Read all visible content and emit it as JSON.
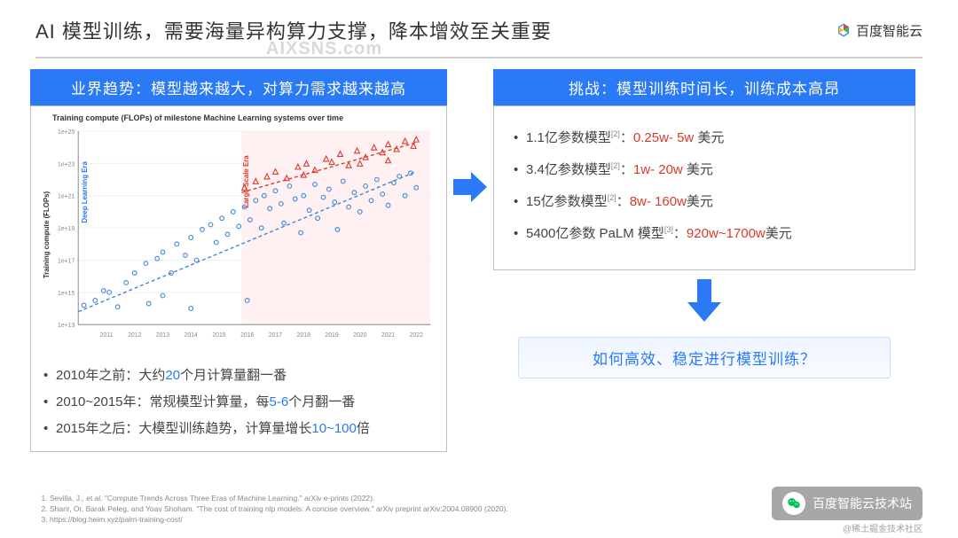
{
  "header": {
    "title": "AI 模型训练，需要海量异构算力支撑，降本增效至关重要",
    "brand": "百度智能云",
    "brand_colors": [
      "#e63b2e",
      "#3cba54",
      "#4285f4",
      "#fbbc05"
    ]
  },
  "watermark": "AIXSNS.com",
  "left_panel": {
    "bar_title": "业界趋势：模型越来越大，对算力需求越来越高",
    "chart": {
      "type": "scatter",
      "title": "Training compute (FLOPs) of milestone Machine Learning systems over time",
      "xlabel_ticks": [
        "2011",
        "2012",
        "2013",
        "2014",
        "2015",
        "2016",
        "2017",
        "2018",
        "2019",
        "2020",
        "2021",
        "2022"
      ],
      "ylabel": "Training compute (FLOPs)",
      "y_scale": "log",
      "ylim_exp": [
        13,
        25
      ],
      "ytick_exp": [
        13,
        15,
        17,
        19,
        21,
        23,
        25
      ],
      "background_color": "#ffffff",
      "grid_color": "#f0f0f0",
      "era_label_left": "Deep Learning Era",
      "era_label_left_color": "#2a7af5",
      "era_label_right": "Large-Scale Era",
      "era_label_right_color": "#d93a2b",
      "era_boundary_x": 2015.8,
      "shade_right_color": "rgba(255,200,200,0.25)",
      "series": [
        {
          "name": "deep-learning",
          "color": "#3a86d8",
          "marker": "circle",
          "marker_size": 4,
          "fill_opacity": 0.0,
          "stroke_width": 1.2
        },
        {
          "name": "large-scale",
          "color": "#d93a2b",
          "marker": "triangle",
          "marker_size": 5,
          "fill_opacity": 0.0,
          "stroke_width": 1.2
        }
      ],
      "trend_lines": [
        {
          "color": "#3a86d8",
          "dash": "4 3",
          "x1": 2010,
          "y1_exp": 13.8,
          "x2": 2022,
          "y2_exp": 22.5
        },
        {
          "color": "#d93a2b",
          "dash": "4 3",
          "x1": 2015.8,
          "y1_exp": 21.2,
          "x2": 2022,
          "y2_exp": 24.3
        }
      ],
      "points_blue": [
        [
          2010.2,
          14.2
        ],
        [
          2010.6,
          14.5
        ],
        [
          2010.9,
          15.1
        ],
        [
          2011.1,
          15.0
        ],
        [
          2011.4,
          14.1
        ],
        [
          2011.7,
          15.6
        ],
        [
          2012.0,
          16.2
        ],
        [
          2012.4,
          16.8
        ],
        [
          2012.5,
          14.3
        ],
        [
          2012.8,
          17.1
        ],
        [
          2013.0,
          17.5
        ],
        [
          2013.3,
          16.2
        ],
        [
          2013.5,
          18.0
        ],
        [
          2013.8,
          17.3
        ],
        [
          2014.0,
          18.4
        ],
        [
          2014.2,
          17.0
        ],
        [
          2014.4,
          18.9
        ],
        [
          2014.7,
          19.2
        ],
        [
          2014.9,
          18.1
        ],
        [
          2015.1,
          19.6
        ],
        [
          2015.3,
          18.6
        ],
        [
          2015.5,
          20.0
        ],
        [
          2015.7,
          19.1
        ],
        [
          2015.9,
          20.3
        ],
        [
          2016.1,
          19.5
        ],
        [
          2016.3,
          20.7
        ],
        [
          2016.5,
          19.0
        ],
        [
          2016.6,
          21.0
        ],
        [
          2016.8,
          20.2
        ],
        [
          2017.0,
          21.3
        ],
        [
          2017.2,
          20.5
        ],
        [
          2017.3,
          19.3
        ],
        [
          2017.5,
          21.6
        ],
        [
          2017.7,
          20.8
        ],
        [
          2017.9,
          18.7
        ],
        [
          2018.0,
          21.0
        ],
        [
          2018.2,
          20.1
        ],
        [
          2018.4,
          21.7
        ],
        [
          2018.5,
          19.6
        ],
        [
          2018.7,
          20.9
        ],
        [
          2018.9,
          21.4
        ],
        [
          2019.1,
          20.6
        ],
        [
          2019.2,
          18.9
        ],
        [
          2019.4,
          21.9
        ],
        [
          2019.6,
          20.3
        ],
        [
          2019.8,
          21.2
        ],
        [
          2020.0,
          20.0
        ],
        [
          2020.2,
          21.6
        ],
        [
          2020.4,
          20.7
        ],
        [
          2020.6,
          22.0
        ],
        [
          2020.8,
          21.1
        ],
        [
          2021.0,
          20.4
        ],
        [
          2021.2,
          21.8
        ],
        [
          2021.4,
          22.2
        ],
        [
          2021.6,
          21.0
        ],
        [
          2021.8,
          22.4
        ],
        [
          2022.0,
          21.5
        ],
        [
          2014.0,
          14.0
        ],
        [
          2016.0,
          14.5
        ],
        [
          2013.0,
          14.8
        ]
      ],
      "points_red": [
        [
          2015.9,
          21.5
        ],
        [
          2016.3,
          21.9
        ],
        [
          2016.7,
          22.2
        ],
        [
          2017.0,
          22.5
        ],
        [
          2017.4,
          22.1
        ],
        [
          2017.8,
          22.8
        ],
        [
          2018.1,
          23.0
        ],
        [
          2018.4,
          22.6
        ],
        [
          2018.8,
          23.3
        ],
        [
          2019.0,
          23.1
        ],
        [
          2019.3,
          23.6
        ],
        [
          2019.6,
          22.9
        ],
        [
          2019.9,
          23.8
        ],
        [
          2020.2,
          23.4
        ],
        [
          2020.5,
          24.0
        ],
        [
          2020.8,
          23.7
        ],
        [
          2021.0,
          24.2
        ],
        [
          2021.3,
          23.9
        ],
        [
          2021.6,
          24.4
        ],
        [
          2021.9,
          24.1
        ],
        [
          2022.0,
          24.5
        ],
        [
          2018.0,
          22.3
        ],
        [
          2020.0,
          23.0
        ],
        [
          2021.0,
          23.2
        ]
      ]
    },
    "bullets": [
      {
        "pre": "2010年之前：大约",
        "hl": "20",
        "hl_color": "blue",
        "post": "个月计算量翻一番"
      },
      {
        "pre": "2010~2015年：常规模型计算量，每",
        "hl": "5-6",
        "hl_color": "blue",
        "post": "个月翻一番"
      },
      {
        "pre": "2015年之后：大模型训练趋势，计算量增长",
        "hl": "10~100",
        "hl_color": "blue",
        "post": "倍"
      }
    ]
  },
  "right_panel": {
    "bar_title": "挑战：模型训练时间长，训练成本高昂",
    "bullets": [
      {
        "pre": "1.1亿参数模型",
        "sup": "[2]",
        "mid": "：",
        "hl": "0.25w- 5w",
        "post": " 美元"
      },
      {
        "pre": "3.4亿参数模型",
        "sup": "[2]",
        "mid": "：",
        "hl": "1w- 20w",
        "post": " 美元"
      },
      {
        "pre": "15亿参数模型",
        "sup": "[2]",
        "mid": "：",
        "hl": "8w- 160w",
        "post": "美元"
      },
      {
        "pre": "5400亿参数 PaLM 模型",
        "sup": "[3]",
        "mid": "：",
        "hl": "920w~1700w",
        "post": "美元"
      }
    ],
    "question": "如何高效、稳定进行模型训练？"
  },
  "arrows": {
    "color": "#2a7af5"
  },
  "references": [
    "Sevilla, J., et al. \"Compute Trends Across Three Eras of Machine Learning.\" arXiv e-prints (2022).",
    "Sharir, Or, Barak Peleg, and Yoav Shoham. \"The cost of training nlp models: A concise overview.\" arXiv preprint arXiv:2004.08900 (2020).",
    "https://blog.heim.xyz/palm-training-cost/"
  ],
  "footer_badge": {
    "text": "百度智能云技术站",
    "subtext": "@稀土掘金技术社区"
  }
}
